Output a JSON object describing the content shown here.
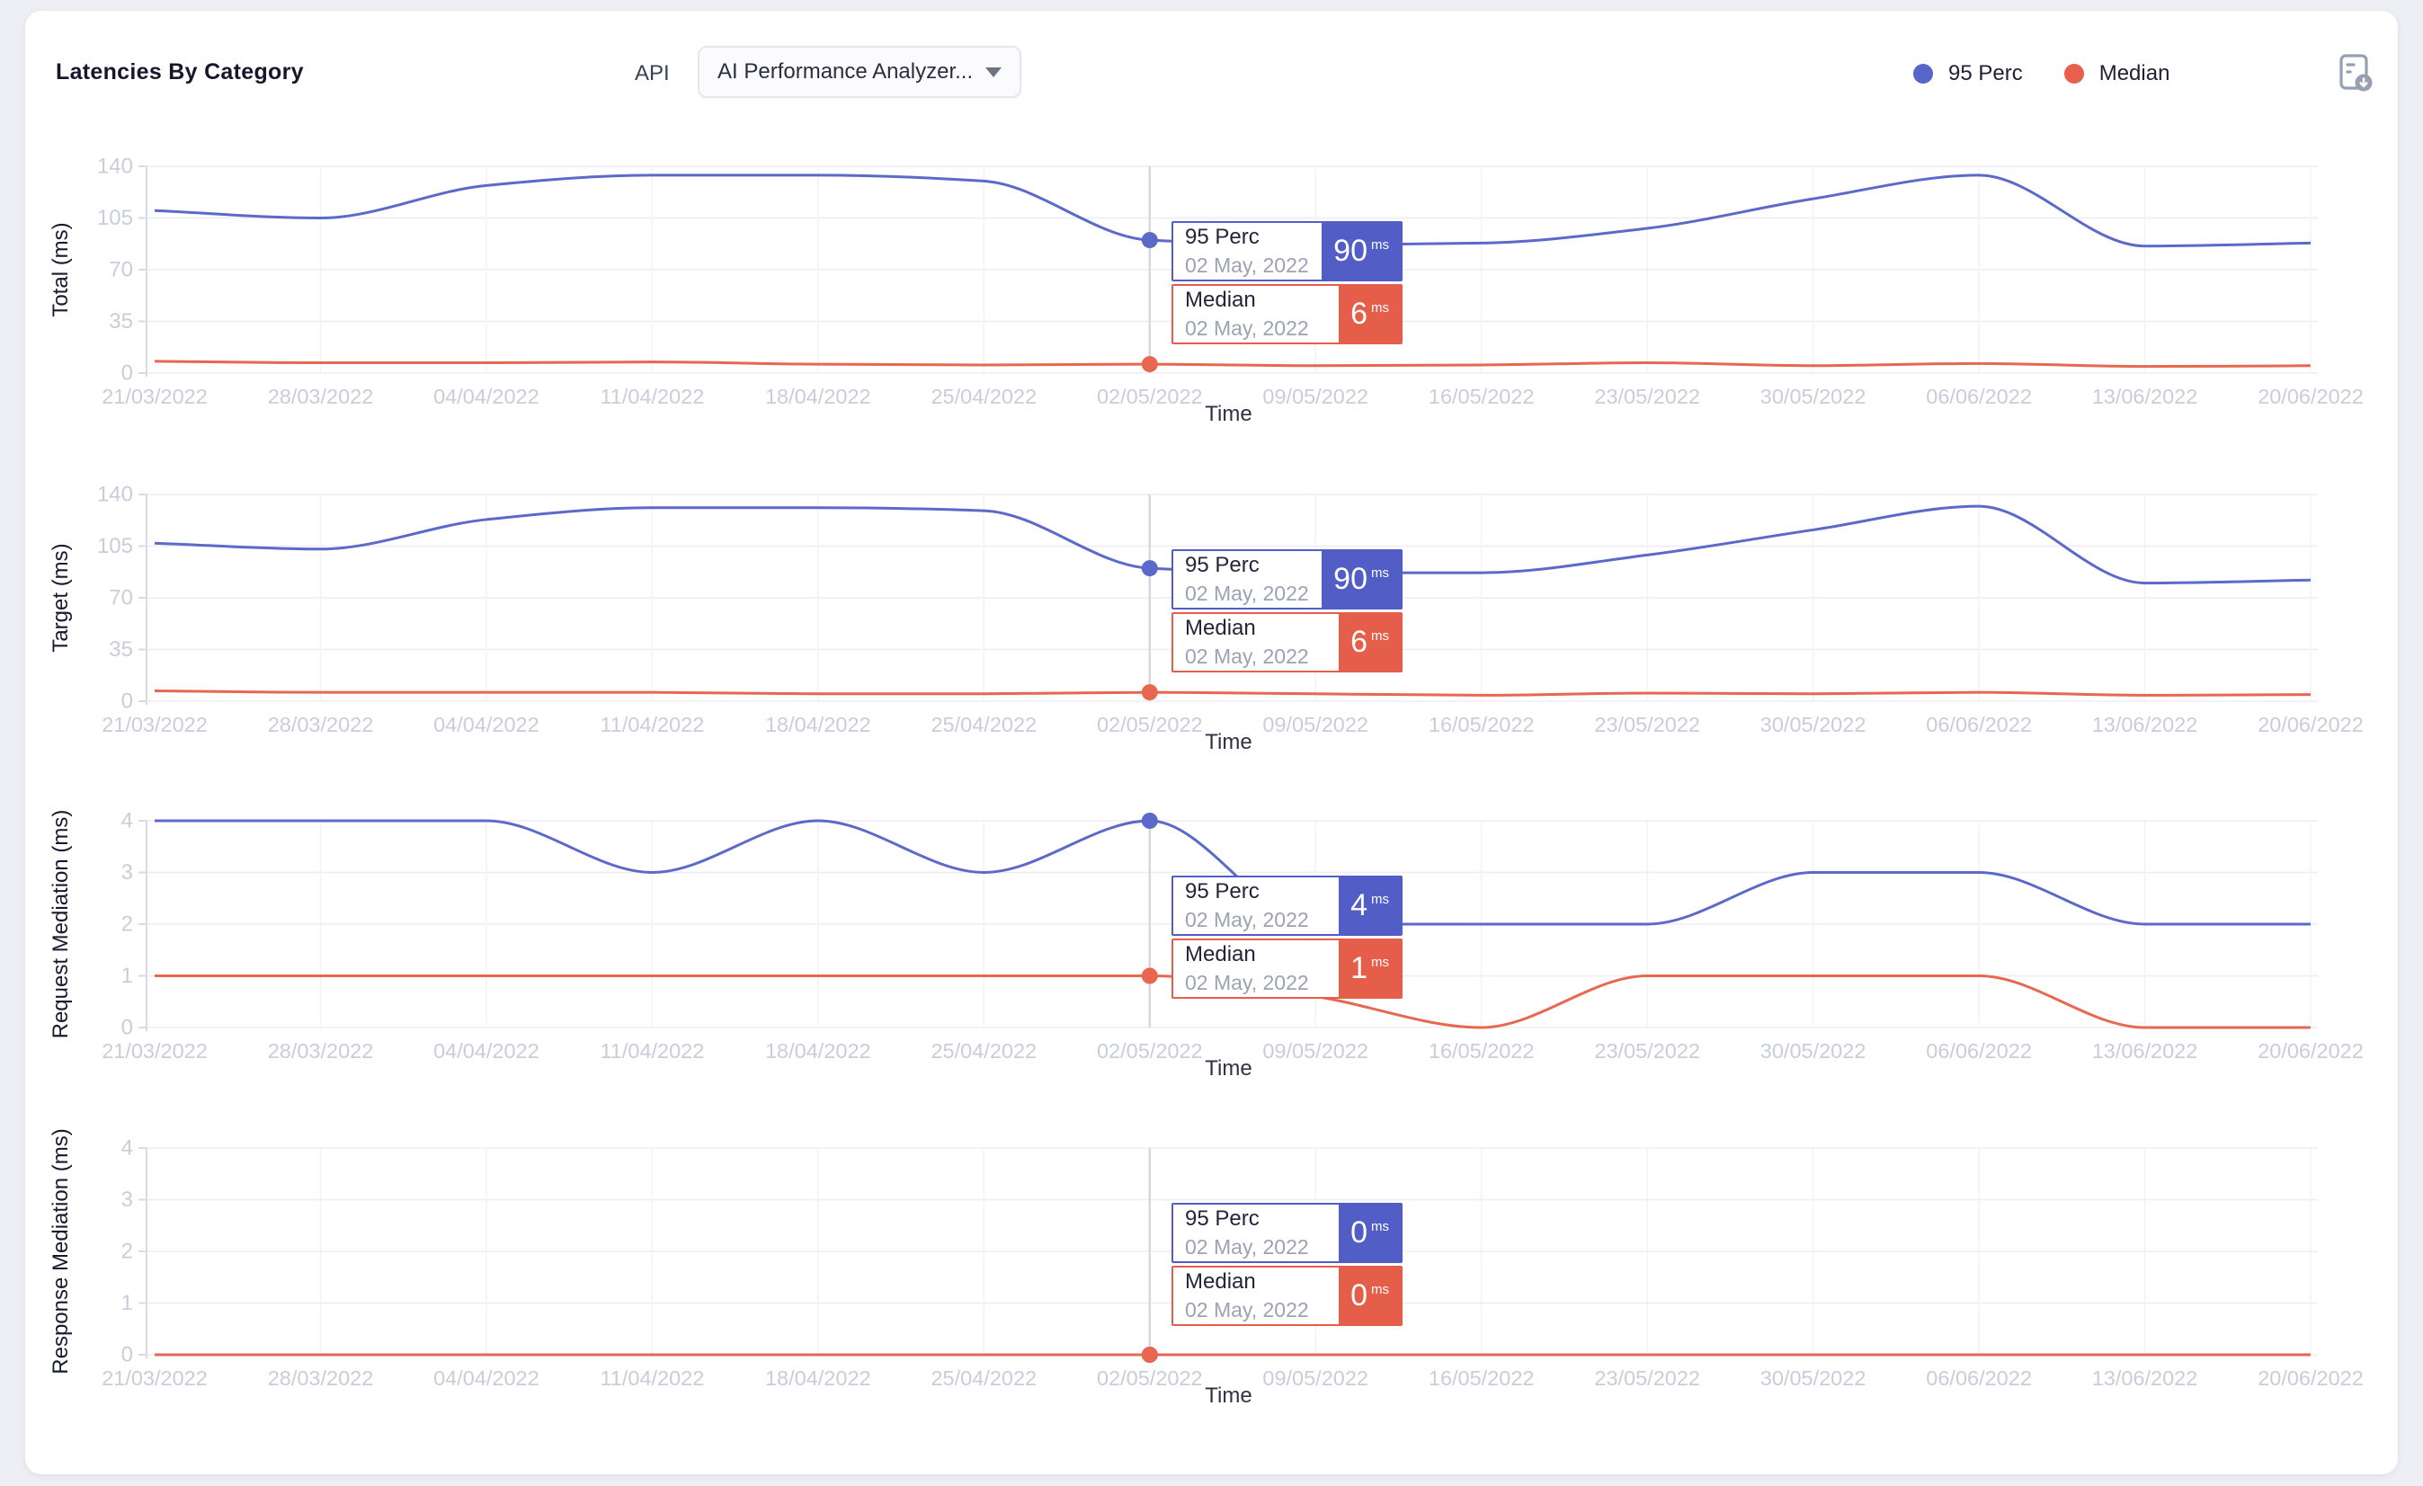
{
  "header": {
    "title": "Latencies By Category",
    "api_label": "API",
    "api_select": {
      "value": "AI Performance Analyzer..."
    },
    "legend": [
      {
        "label": "95 Perc",
        "color": "#5766C9"
      },
      {
        "label": "Median",
        "color": "#E8604C"
      }
    ],
    "export_icon": "report-download-icon"
  },
  "colors": {
    "perc_line": "#5B69C8",
    "median_line": "#E8674F",
    "perc_box": "#525EC6",
    "median_box": "#E45E49",
    "grid": "#EDEEF3",
    "axis": "#D9DBE3",
    "crosshair": "#D7D8DF",
    "tick_text": "#C9CDDA"
  },
  "chart_data": [
    {
      "type": "line",
      "ylabel": "Total (ms)",
      "xlabel": "Time",
      "ylim": [
        0,
        140
      ],
      "yticks": [
        0,
        35,
        70,
        105,
        140
      ],
      "x_categories": [
        "21/03/2022",
        "28/03/2022",
        "04/04/2022",
        "11/04/2022",
        "18/04/2022",
        "25/04/2022",
        "02/05/2022",
        "09/05/2022",
        "16/05/2022",
        "23/05/2022",
        "30/05/2022",
        "06/06/2022",
        "13/06/2022",
        "20/06/2022"
      ],
      "series": [
        {
          "name": "95 Perc",
          "color": "#5B69C8",
          "values": [
            110,
            105,
            127,
            134,
            134,
            130,
            90,
            87,
            88,
            98,
            118,
            134,
            86,
            88
          ]
        },
        {
          "name": "Median",
          "color": "#E8674F",
          "values": [
            8,
            7,
            7,
            7.5,
            6,
            5.5,
            6,
            5,
            5.5,
            7,
            5,
            6.5,
            4.5,
            5
          ]
        }
      ],
      "tooltip": {
        "x_index": 6,
        "rows": [
          {
            "series": "95 Perc",
            "date": "02 May, 2022",
            "value": "90",
            "unit": "ms",
            "color": "#525EC6"
          },
          {
            "series": "Median",
            "date": "02 May, 2022",
            "value": "6",
            "unit": "ms",
            "color": "#E45E49"
          }
        ]
      }
    },
    {
      "type": "line",
      "ylabel": "Target (ms)",
      "xlabel": "Time",
      "ylim": [
        0,
        140
      ],
      "yticks": [
        0,
        35,
        70,
        105,
        140
      ],
      "x_categories": [
        "21/03/2022",
        "28/03/2022",
        "04/04/2022",
        "11/04/2022",
        "18/04/2022",
        "25/04/2022",
        "02/05/2022",
        "09/05/2022",
        "16/05/2022",
        "23/05/2022",
        "30/05/2022",
        "06/06/2022",
        "13/06/2022",
        "20/06/2022"
      ],
      "series": [
        {
          "name": "95 Perc",
          "color": "#5B69C8",
          "values": [
            107,
            103,
            123,
            131,
            131,
            129,
            90,
            87,
            87,
            99,
            116,
            132,
            80,
            82
          ]
        },
        {
          "name": "Median",
          "color": "#E8674F",
          "values": [
            7,
            6,
            6,
            6,
            5,
            5,
            6,
            5,
            4,
            5.5,
            5,
            6,
            4,
            4.5
          ]
        }
      ],
      "tooltip": {
        "x_index": 6,
        "rows": [
          {
            "series": "95 Perc",
            "date": "02 May, 2022",
            "value": "90",
            "unit": "ms",
            "color": "#525EC6"
          },
          {
            "series": "Median",
            "date": "02 May, 2022",
            "value": "6",
            "unit": "ms",
            "color": "#E45E49"
          }
        ]
      }
    },
    {
      "type": "line",
      "ylabel": "Request Mediation (ms)",
      "xlabel": "Time",
      "ylim": [
        0,
        4
      ],
      "yticks": [
        0,
        1,
        2,
        3,
        4
      ],
      "x_categories": [
        "21/03/2022",
        "28/03/2022",
        "04/04/2022",
        "11/04/2022",
        "18/04/2022",
        "25/04/2022",
        "02/05/2022",
        "09/05/2022",
        "16/05/2022",
        "23/05/2022",
        "30/05/2022",
        "06/06/2022",
        "13/06/2022",
        "20/06/2022"
      ],
      "series": [
        {
          "name": "95 Perc",
          "color": "#5B69C8",
          "values": [
            4,
            4,
            4,
            3,
            4,
            3,
            4,
            2,
            2,
            2,
            3,
            3,
            2,
            2
          ]
        },
        {
          "name": "Median",
          "color": "#E8674F",
          "values": [
            1,
            1,
            1,
            1,
            1,
            1,
            1,
            0.6,
            0,
            1,
            1,
            1,
            0,
            0
          ]
        }
      ],
      "tooltip": {
        "x_index": 6,
        "rows": [
          {
            "series": "95 Perc",
            "date": "02 May, 2022",
            "value": "4",
            "unit": "ms",
            "color": "#525EC6"
          },
          {
            "series": "Median",
            "date": "02 May, 2022",
            "value": "1",
            "unit": "ms",
            "color": "#E45E49"
          }
        ]
      }
    },
    {
      "type": "line",
      "ylabel": "Response Mediation (ms)",
      "xlabel": "Time",
      "ylim": [
        0,
        4
      ],
      "yticks": [
        0,
        1,
        2,
        3,
        4
      ],
      "x_categories": [
        "21/03/2022",
        "28/03/2022",
        "04/04/2022",
        "11/04/2022",
        "18/04/2022",
        "25/04/2022",
        "02/05/2022",
        "09/05/2022",
        "16/05/2022",
        "23/05/2022",
        "30/05/2022",
        "06/06/2022",
        "13/06/2022",
        "20/06/2022"
      ],
      "series": [
        {
          "name": "95 Perc",
          "color": "#5B69C8",
          "values": [
            0,
            0,
            0,
            0,
            0,
            0,
            0,
            0,
            0,
            0,
            0,
            0,
            0,
            0
          ]
        },
        {
          "name": "Median",
          "color": "#E8674F",
          "values": [
            0,
            0,
            0,
            0,
            0,
            0,
            0,
            0,
            0,
            0,
            0,
            0,
            0,
            0
          ]
        }
      ],
      "tooltip": {
        "x_index": 6,
        "rows": [
          {
            "series": "95 Perc",
            "date": "02 May, 2022",
            "value": "0",
            "unit": "ms",
            "color": "#525EC6"
          },
          {
            "series": "Median",
            "date": "02 May, 2022",
            "value": "0",
            "unit": "ms",
            "color": "#E45E49"
          }
        ]
      }
    }
  ]
}
